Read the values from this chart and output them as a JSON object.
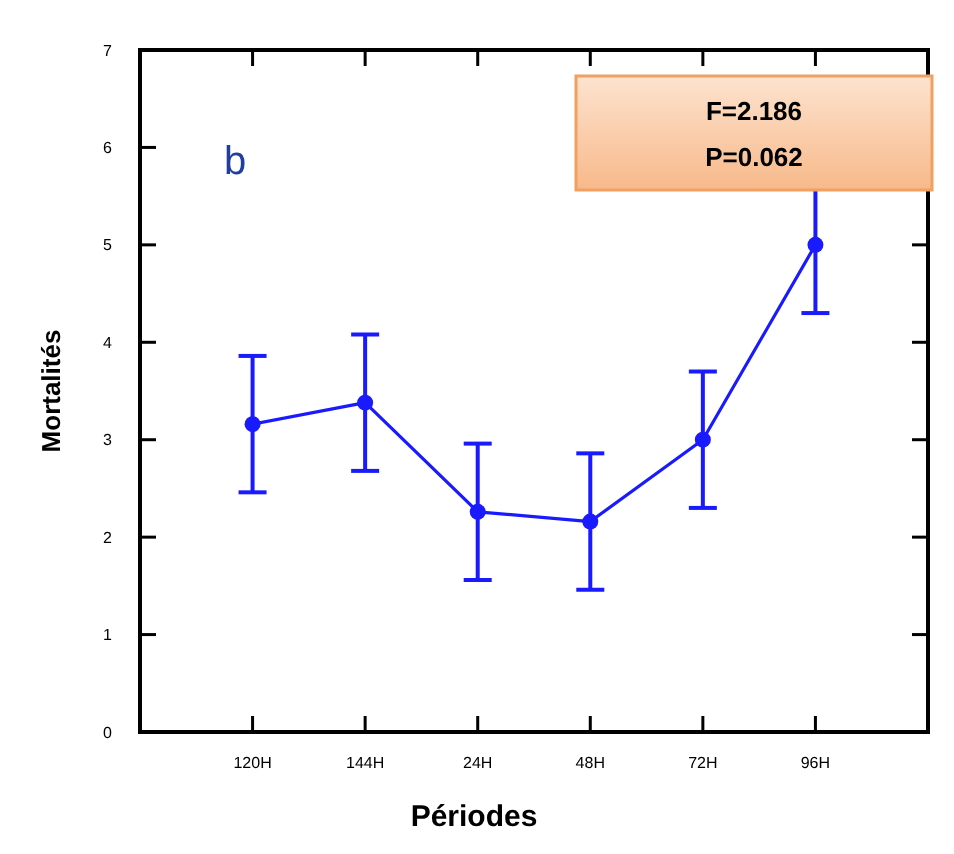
{
  "chart_data": {
    "type": "line",
    "xlabel": "Périodes",
    "ylabel": "Mortalités",
    "categories": [
      "120H",
      "144H",
      "24H",
      "48H",
      "72H",
      "96H"
    ],
    "series": [
      {
        "color": "#1a1aff",
        "values": [
          3.16,
          3.38,
          2.26,
          2.16,
          3.0,
          5.0
        ],
        "errors": [
          0.7,
          0.7,
          0.7,
          0.7,
          0.7,
          0.7
        ]
      }
    ],
    "ylim": [
      0,
      7
    ],
    "yticks": [
      0,
      1,
      2,
      3,
      4,
      5,
      6,
      7
    ],
    "grid": false,
    "marker": "circle",
    "line_style": "solid",
    "annotations": [
      "b",
      "F=2.186\nP=0.062"
    ]
  }
}
